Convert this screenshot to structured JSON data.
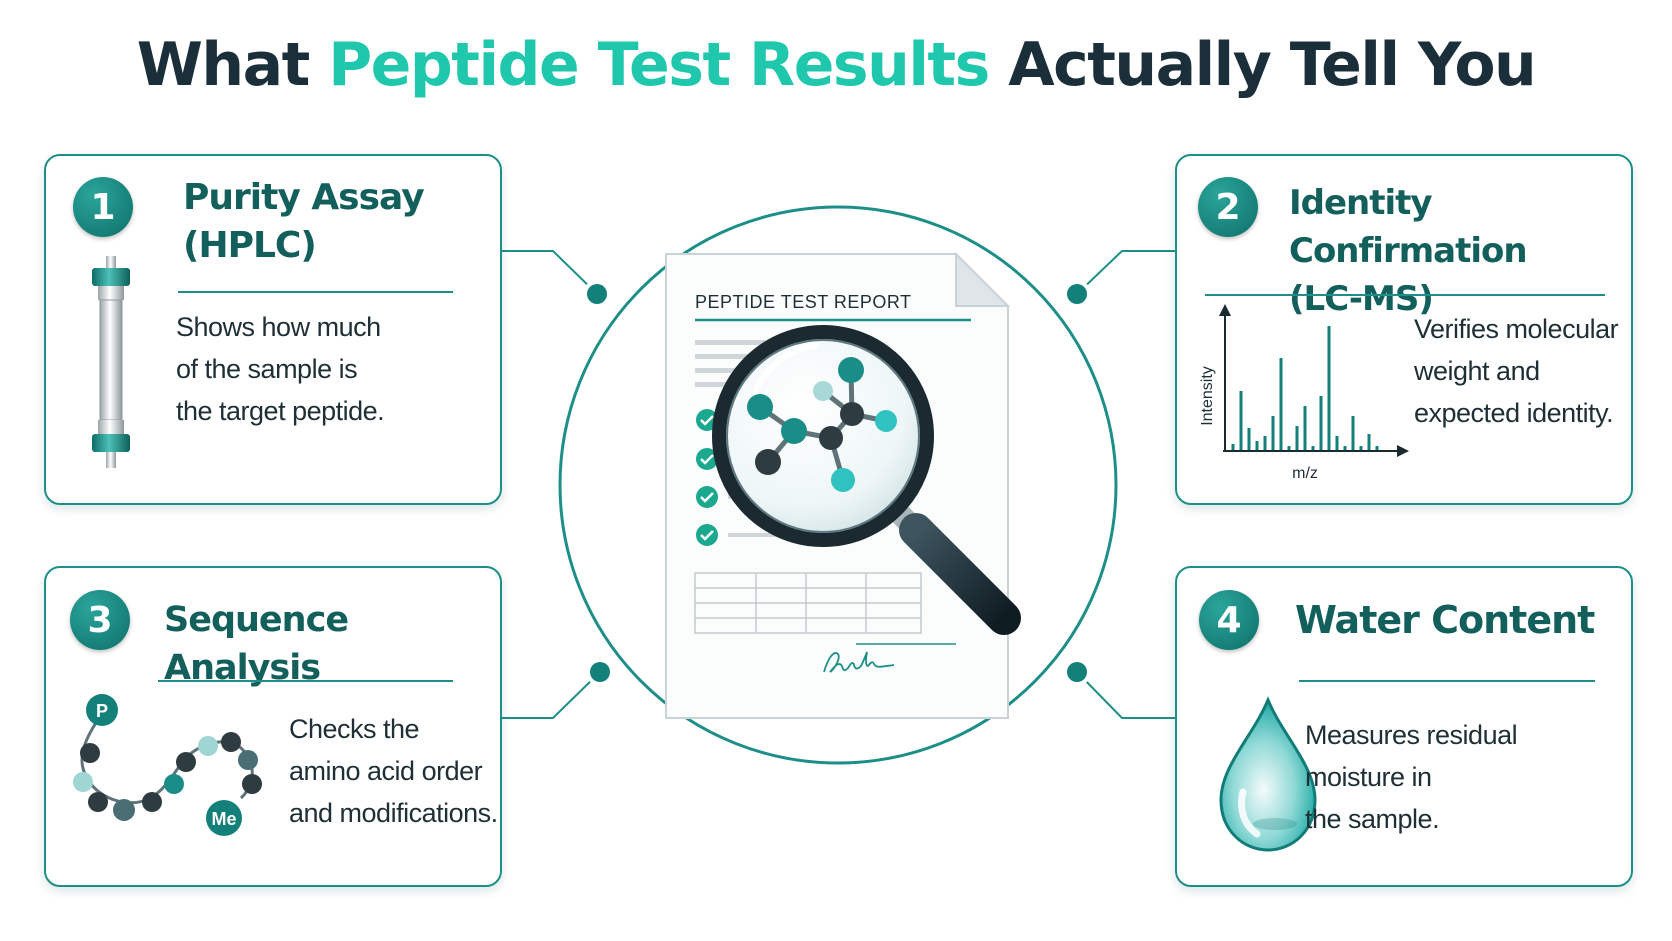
{
  "title": {
    "part1": "What ",
    "accent": "Peptide Test Results",
    "part2": " Actually Tell You"
  },
  "colors": {
    "teal_dark": "#125f5c",
    "teal": "#1d8f88",
    "accent": "#1fc7ad",
    "navy": "#1b2f3a"
  },
  "center": {
    "report_title": "PEPTIDE TEST REPORT",
    "checklist_count": 4,
    "icons": [
      "document-icon",
      "magnifier-icon",
      "molecule-icon",
      "signature-icon"
    ]
  },
  "cards": [
    {
      "number": "1",
      "title_lines": [
        "Purity Assay",
        "(HPLC)"
      ],
      "text_lines": [
        "Shows how much",
        "of the sample is",
        "the target peptide."
      ],
      "icon": "hplc-column-icon"
    },
    {
      "number": "2",
      "title_lines": [
        "Identity Confirmation",
        "(LC-MS)"
      ],
      "text_lines": [
        "Verifies molecular",
        "weight and",
        "expected identity."
      ],
      "icon": "mass-spectrum-icon",
      "chart": {
        "ylabel": "Intensity",
        "xlabel": "m/z"
      }
    },
    {
      "number": "3",
      "title_lines": [
        "Sequence Analysis"
      ],
      "text_lines": [
        "Checks the",
        "amino acid order",
        "and modifications."
      ],
      "icon": "amino-acid-chain-icon",
      "chain_labels": [
        "P",
        "Me"
      ]
    },
    {
      "number": "4",
      "title_lines": [
        "Water Content"
      ],
      "text_lines": [
        "Measures residual",
        "moisture in",
        "the sample."
      ],
      "icon": "water-drop-icon"
    }
  ]
}
